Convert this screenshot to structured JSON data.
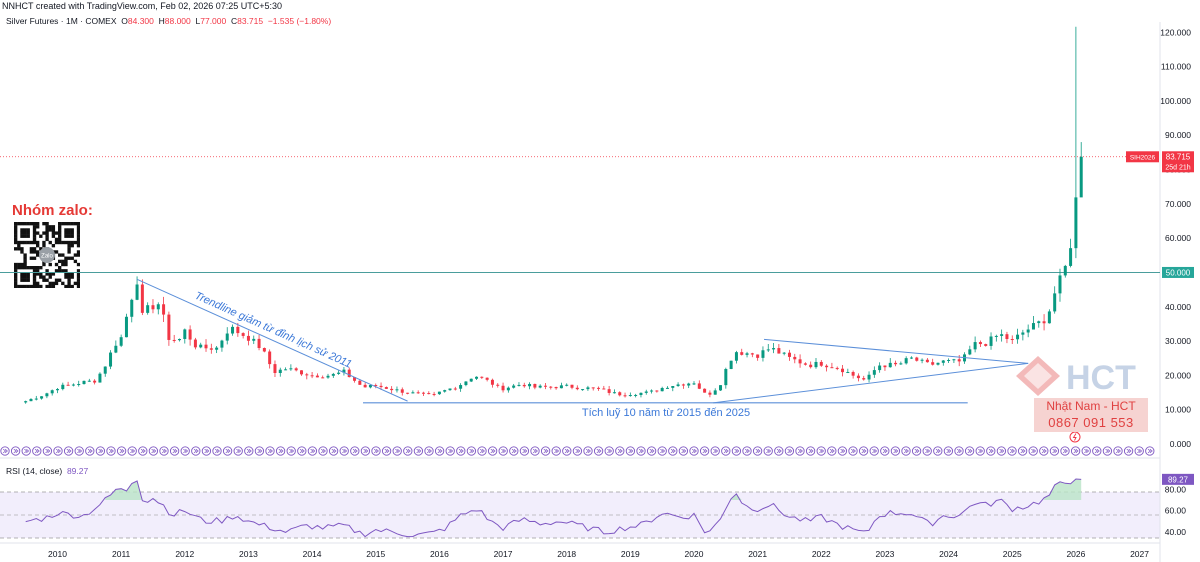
{
  "header": {
    "attribution": "NNHCT created with TradingView.com, Feb 02, 2026 07:25 UTC+5:30"
  },
  "symbol": {
    "name": "Silver Futures · 1M · COMEX",
    "open_label": "O",
    "open": "84.300",
    "high_label": "H",
    "high": "88.000",
    "low_label": "L",
    "low": "77.000",
    "close_label": "C",
    "close": "83.715",
    "change": "−1.535 (−1.80%)"
  },
  "rsi": {
    "label": "RSI (14, close)",
    "value": "89.27"
  },
  "price_badge": {
    "ticker": "SIH2026",
    "price": "83.715",
    "countdown": "25d 21h"
  },
  "level_badge": "50.000",
  "annotations": {
    "zalo": "Nhóm zalo:",
    "qr_center": "Zalo",
    "trendline": "Trendline giảm từ đỉnh lịch sử 2011",
    "accumulation": "Tích luỹ 10 năm từ 2015 đến 2025"
  },
  "brand": {
    "logo": "HCT",
    "name": "Nhật Nam - HCT",
    "phone": "0867 091 553"
  },
  "colors": {
    "up": "#089981",
    "down": "#f23645",
    "rsi": "#7e57c2",
    "line": "#5b8fd9",
    "level": "#4a9d9c"
  },
  "chart_data": {
    "type": "candlestick",
    "interval": "1M",
    "x_axis_labels": [
      "2010",
      "2011",
      "2012",
      "2013",
      "2014",
      "2015",
      "2016",
      "2017",
      "2018",
      "2019",
      "2020",
      "2021",
      "2022",
      "2023",
      "2024",
      "2025",
      "2026",
      "2027"
    ],
    "y_axis_labels": [
      "0.000",
      "10.000",
      "20.000",
      "30.000",
      "40.000",
      "50.000",
      "60.000",
      "70.000",
      "80.000",
      "90.000",
      "100.000",
      "110.000",
      "120.000"
    ],
    "ylim": [
      0,
      123
    ],
    "rsi_axis_labels": [
      "40.00",
      "60.00",
      "80.00"
    ],
    "rsi_ylim": [
      28,
      98
    ],
    "rsi_band": [
      30,
      70
    ],
    "horizontal_level": 50,
    "last_price": 83.715,
    "anchors": [
      [
        2009.5,
        12.5
      ],
      [
        2009.8,
        14.5
      ],
      [
        2010.0,
        16.5
      ],
      [
        2010.4,
        18
      ],
      [
        2010.6,
        18.5
      ],
      [
        2010.75,
        23
      ],
      [
        2010.9,
        29
      ],
      [
        2011.0,
        31
      ],
      [
        2011.15,
        42
      ],
      [
        2011.25,
        48
      ],
      [
        2011.33,
        37
      ],
      [
        2011.45,
        40
      ],
      [
        2011.6,
        41
      ],
      [
        2011.75,
        31
      ],
      [
        2011.9,
        30
      ],
      [
        2012.0,
        33
      ],
      [
        2012.2,
        28
      ],
      [
        2012.5,
        28
      ],
      [
        2012.7,
        34
      ],
      [
        2012.9,
        32
      ],
      [
        2013.0,
        31
      ],
      [
        2013.2,
        28
      ],
      [
        2013.4,
        21
      ],
      [
        2013.6,
        22
      ],
      [
        2013.8,
        21
      ],
      [
        2014.0,
        20
      ],
      [
        2014.3,
        20
      ],
      [
        2014.5,
        21
      ],
      [
        2014.8,
        16.5
      ],
      [
        2015.0,
        17
      ],
      [
        2015.5,
        15
      ],
      [
        2015.9,
        14
      ],
      [
        2016.0,
        15
      ],
      [
        2016.3,
        17
      ],
      [
        2016.55,
        20
      ],
      [
        2016.8,
        18
      ],
      [
        2016.95,
        16
      ],
      [
        2017.3,
        17.5
      ],
      [
        2017.5,
        16.5
      ],
      [
        2018.0,
        16.8
      ],
      [
        2018.5,
        16
      ],
      [
        2018.8,
        14.5
      ],
      [
        2019.3,
        15
      ],
      [
        2019.6,
        17
      ],
      [
        2019.8,
        17.5
      ],
      [
        2020.0,
        18
      ],
      [
        2020.2,
        14
      ],
      [
        2020.4,
        17
      ],
      [
        2020.55,
        24
      ],
      [
        2020.65,
        27
      ],
      [
        2021.0,
        26
      ],
      [
        2021.2,
        28
      ],
      [
        2021.5,
        25
      ],
      [
        2021.8,
        23
      ],
      [
        2022.0,
        23.5
      ],
      [
        2022.3,
        22
      ],
      [
        2022.5,
        20
      ],
      [
        2022.7,
        18.5
      ],
      [
        2022.9,
        23
      ],
      [
        2023.2,
        23
      ],
      [
        2023.4,
        25
      ],
      [
        2023.7,
        23
      ],
      [
        2023.9,
        24
      ],
      [
        2024.2,
        24
      ],
      [
        2024.4,
        29
      ],
      [
        2024.6,
        29.5
      ],
      [
        2024.8,
        32
      ],
      [
        2025.0,
        30
      ],
      [
        2025.2,
        33
      ],
      [
        2025.4,
        35
      ],
      [
        2025.55,
        37
      ],
      [
        2025.7,
        46
      ],
      [
        2025.8,
        49
      ],
      [
        2025.9,
        56
      ],
      [
        2026.0,
        71
      ],
      [
        2026.08,
        83.715
      ]
    ],
    "rsi_anchors": [
      [
        2009.5,
        50
      ],
      [
        2009.8,
        53
      ],
      [
        2010.0,
        58
      ],
      [
        2010.4,
        55
      ],
      [
        2010.6,
        63
      ],
      [
        2010.8,
        72
      ],
      [
        2010.95,
        82
      ],
      [
        2011.05,
        76
      ],
      [
        2011.15,
        86
      ],
      [
        2011.25,
        90
      ],
      [
        2011.35,
        68
      ],
      [
        2011.5,
        72
      ],
      [
        2011.65,
        66
      ],
      [
        2011.8,
        56
      ],
      [
        2012.0,
        60
      ],
      [
        2012.3,
        50
      ],
      [
        2012.6,
        51
      ],
      [
        2012.8,
        56
      ],
      [
        2013.0,
        50
      ],
      [
        2013.3,
        45
      ],
      [
        2013.6,
        40
      ],
      [
        2013.9,
        46
      ],
      [
        2014.2,
        44
      ],
      [
        2014.5,
        46
      ],
      [
        2014.8,
        38
      ],
      [
        2015.0,
        42
      ],
      [
        2015.3,
        40
      ],
      [
        2015.6,
        37
      ],
      [
        2015.9,
        39
      ],
      [
        2016.1,
        44
      ],
      [
        2016.35,
        56
      ],
      [
        2016.6,
        62
      ],
      [
        2016.8,
        50
      ],
      [
        2017.0,
        44
      ],
      [
        2017.3,
        52
      ],
      [
        2017.6,
        48
      ],
      [
        2017.9,
        50
      ],
      [
        2018.2,
        46
      ],
      [
        2018.6,
        40
      ],
      [
        2018.9,
        44
      ],
      [
        2019.2,
        47
      ],
      [
        2019.5,
        58
      ],
      [
        2019.8,
        54
      ],
      [
        2020.0,
        56
      ],
      [
        2020.2,
        38
      ],
      [
        2020.4,
        50
      ],
      [
        2020.55,
        70
      ],
      [
        2020.65,
        78
      ],
      [
        2020.8,
        64
      ],
      [
        2021.0,
        62
      ],
      [
        2021.2,
        66
      ],
      [
        2021.5,
        54
      ],
      [
        2021.8,
        50
      ],
      [
        2022.0,
        54
      ],
      [
        2022.3,
        46
      ],
      [
        2022.5,
        42
      ],
      [
        2022.7,
        38
      ],
      [
        2022.9,
        56
      ],
      [
        2023.1,
        58
      ],
      [
        2023.4,
        58
      ],
      [
        2023.7,
        47
      ],
      [
        2023.9,
        55
      ],
      [
        2024.2,
        56
      ],
      [
        2024.4,
        68
      ],
      [
        2024.6,
        65
      ],
      [
        2024.8,
        70
      ],
      [
        2025.0,
        62
      ],
      [
        2025.2,
        64
      ],
      [
        2025.4,
        68
      ],
      [
        2025.55,
        72
      ],
      [
        2025.7,
        84
      ],
      [
        2025.9,
        87
      ],
      [
        2026.0,
        92
      ],
      [
        2026.08,
        89.27
      ]
    ],
    "trendline_falling": [
      [
        2011.25,
        48
      ],
      [
        2015.5,
        12.5
      ]
    ],
    "accumulation_line": [
      [
        2014.8,
        12
      ],
      [
        2024.3,
        12
      ]
    ],
    "triangle_upper": [
      [
        2021.1,
        30.5
      ],
      [
        2025.25,
        23.5
      ]
    ],
    "triangle_lower": [
      [
        2020.3,
        12
      ],
      [
        2025.25,
        23.5
      ]
    ]
  }
}
